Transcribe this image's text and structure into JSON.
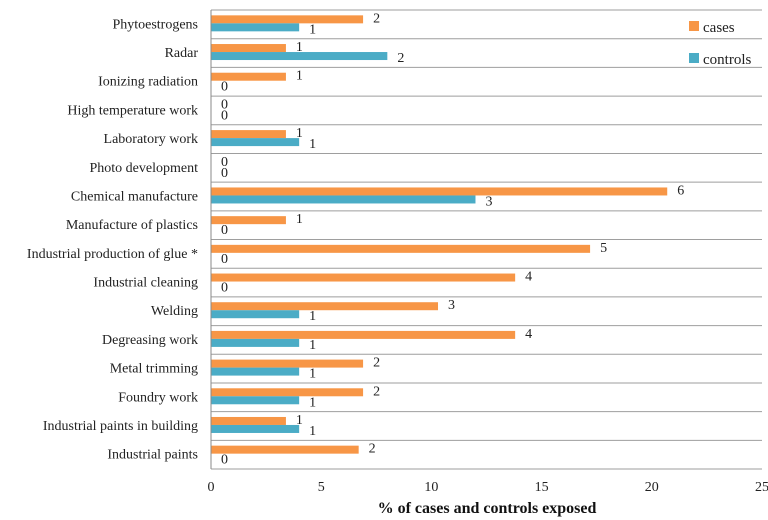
{
  "chart_data": {
    "type": "bar",
    "orientation": "horizontal",
    "title": "",
    "xlabel": "% of cases and controls exposed",
    "ylabel": "",
    "xlim": [
      0,
      25
    ],
    "xticks": [
      0,
      5,
      10,
      15,
      20,
      25
    ],
    "grid": "horizontal separators between categories",
    "legend_position": "top-right",
    "categories": [
      "Phytoestrogens",
      "Radar",
      "Ionizing radiation",
      "High temperature work",
      "Laboratory work",
      "Photo development",
      "Chemical manufacture",
      "Manufacture of plastics",
      "Industrial production of glue *",
      "Industrial cleaning",
      "Welding",
      "Degreasing work",
      "Metal trimming",
      "Foundry work",
      "Industrial paints in building",
      "Industrial paints"
    ],
    "series": [
      {
        "name": "cases",
        "color": "#f79646",
        "values": [
          6.9,
          3.4,
          3.4,
          0,
          3.4,
          0,
          20.7,
          3.4,
          17.2,
          13.8,
          10.3,
          13.8,
          6.9,
          6.9,
          3.4,
          6.7
        ],
        "labels": [
          "2",
          "1",
          "1",
          "0",
          "1",
          "0",
          "6",
          "1",
          "5",
          "4",
          "3",
          "4",
          "2",
          "2",
          "1",
          "2"
        ]
      },
      {
        "name": "controls",
        "color": "#4bacc6",
        "values": [
          4.0,
          8.0,
          0,
          0,
          4.0,
          0,
          12.0,
          0,
          0,
          0,
          4.0,
          4.0,
          4.0,
          4.0,
          4.0,
          0
        ],
        "labels": [
          "1",
          "2",
          "0",
          "0",
          "1",
          "0",
          "3",
          "0",
          "0",
          "0",
          "1",
          "1",
          "1",
          "1",
          "1",
          "0"
        ]
      }
    ]
  }
}
